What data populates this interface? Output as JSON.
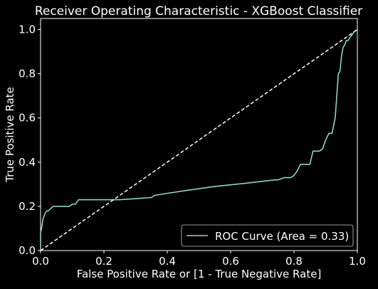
{
  "colors": {
    "background": "#000000",
    "foreground": "#ffffff",
    "roc": "#8dd3c7",
    "reference": "#ffffff"
  },
  "chart_data": {
    "type": "line",
    "title": "Receiver Operating Characteristic - XGBoost Classifier",
    "xlabel": "False Positive Rate or [1 - True Negative Rate]",
    "ylabel": "True Positive Rate",
    "xlim": [
      0.0,
      1.0
    ],
    "ylim": [
      0.0,
      1.05
    ],
    "xticks": [
      0.0,
      0.2,
      0.4,
      0.6,
      0.8,
      1.0
    ],
    "yticks": [
      0.0,
      0.2,
      0.4,
      0.6,
      0.8,
      1.0
    ],
    "xtick_labels": [
      "0.0",
      "0.2",
      "0.4",
      "0.6",
      "0.8",
      "1.0"
    ],
    "ytick_labels": [
      "0.0",
      "0.2",
      "0.4",
      "0.6",
      "0.8",
      "1.0"
    ],
    "grid": false,
    "legend": {
      "position": "lower-right",
      "entries": [
        "ROC Curve (Area = 0.33)"
      ]
    },
    "series": [
      {
        "name": "ROC Curve (Area = 0.33)",
        "style": "solid",
        "x": [
          0.0,
          0.0,
          0.003,
          0.006,
          0.009,
          0.012,
          0.015,
          0.02,
          0.025,
          0.032,
          0.04,
          0.05,
          0.06,
          0.07,
          0.08,
          0.09,
          0.1,
          0.11,
          0.12,
          0.15,
          0.2,
          0.25,
          0.3,
          0.35,
          0.36,
          0.45,
          0.55,
          0.65,
          0.74,
          0.75,
          0.77,
          0.79,
          0.8,
          0.81,
          0.82,
          0.84,
          0.85,
          0.86,
          0.87,
          0.88,
          0.89,
          0.9,
          0.91,
          0.92,
          0.93,
          0.935,
          0.94,
          0.945,
          0.95,
          0.955,
          0.96,
          0.965,
          0.97,
          0.975,
          0.98,
          0.985,
          0.99,
          1.0
        ],
        "y": [
          0.0,
          0.08,
          0.1,
          0.13,
          0.15,
          0.16,
          0.17,
          0.18,
          0.18,
          0.19,
          0.2,
          0.2,
          0.2,
          0.2,
          0.2,
          0.2,
          0.21,
          0.21,
          0.23,
          0.23,
          0.23,
          0.23,
          0.235,
          0.24,
          0.25,
          0.27,
          0.29,
          0.305,
          0.32,
          0.32,
          0.33,
          0.33,
          0.34,
          0.36,
          0.39,
          0.39,
          0.39,
          0.45,
          0.45,
          0.45,
          0.46,
          0.5,
          0.53,
          0.53,
          0.6,
          0.7,
          0.8,
          0.81,
          0.88,
          0.92,
          0.93,
          0.95,
          0.95,
          0.96,
          0.97,
          0.98,
          0.99,
          1.0
        ]
      },
      {
        "name": "",
        "style": "dashed",
        "x": [
          0.0,
          1.0
        ],
        "y": [
          0.0,
          1.0
        ]
      }
    ]
  }
}
